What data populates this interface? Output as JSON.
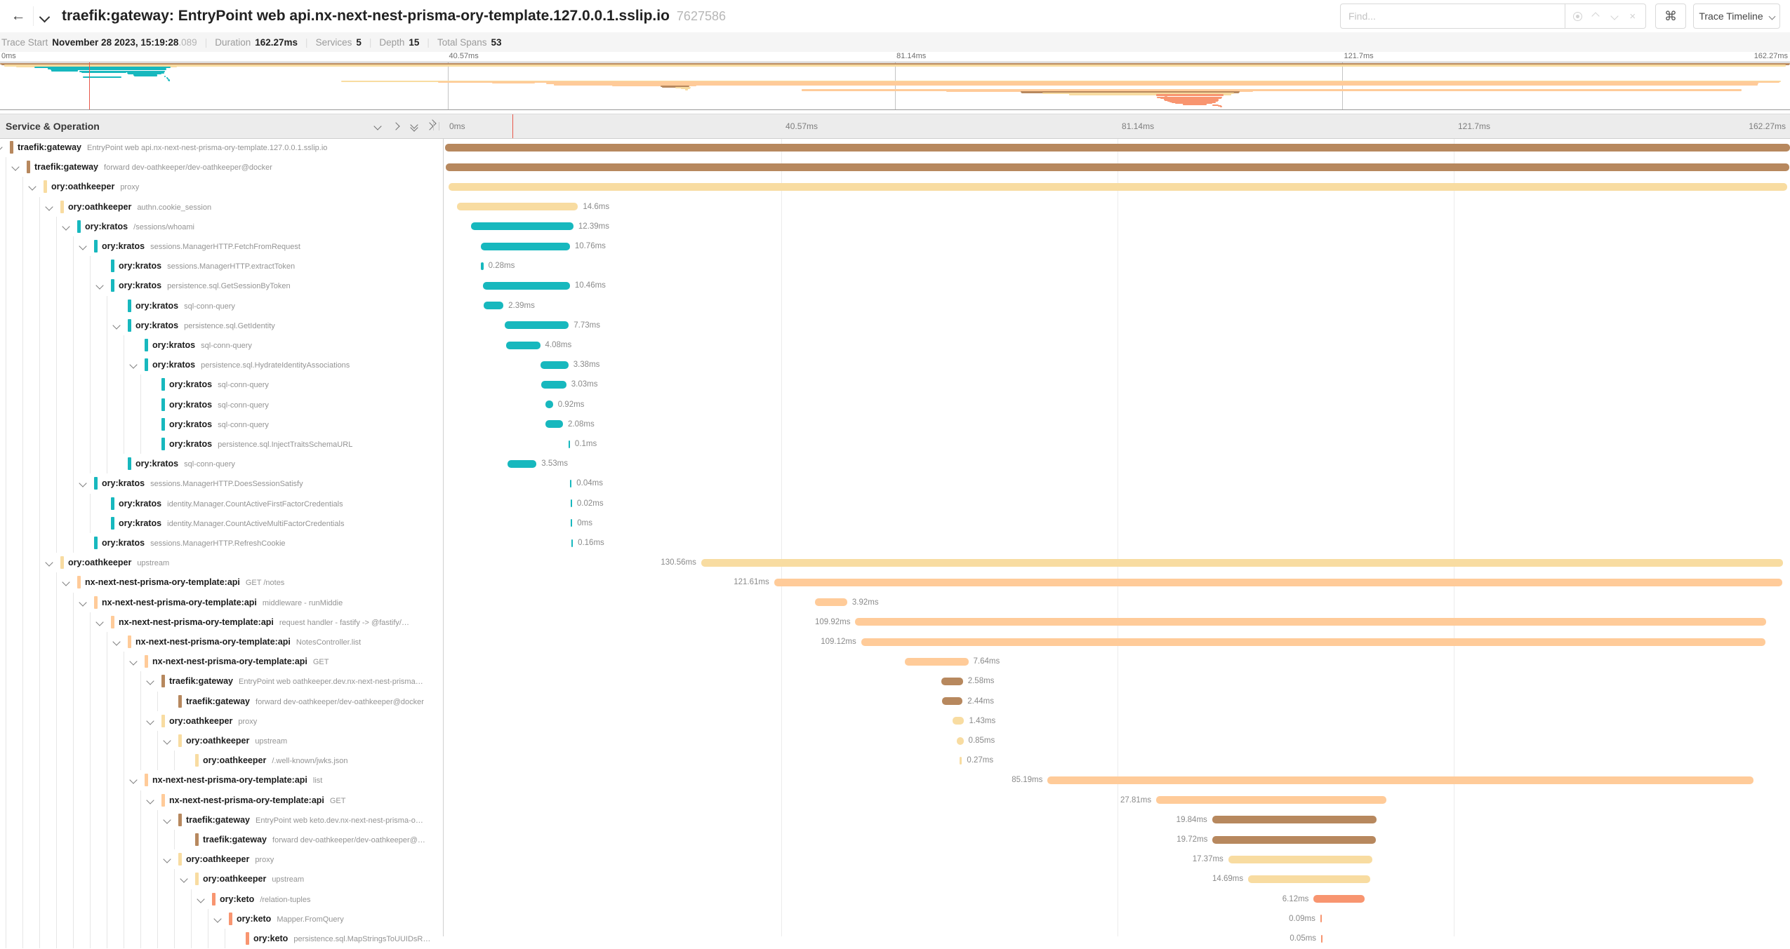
{
  "header": {
    "back": "←",
    "title": "traefik:gateway: EntryPoint web api.nx-next-nest-prisma-ory-template.127.0.0.1.sslip.io",
    "trace_id": "7627586",
    "find_placeholder": "Find...",
    "find_icons": [
      "locate-icon",
      "chevron-up-icon",
      "chevron-down-icon",
      "close-icon"
    ],
    "shortcut_key": "⌘",
    "view_selector": "Trace Timeline"
  },
  "stats": [
    {
      "label": "Trace Start",
      "value": "November 28 2023, 15:19:28",
      "suffix": ".089"
    },
    {
      "label": "Duration",
      "value": "162.27ms"
    },
    {
      "label": "Services",
      "value": "5"
    },
    {
      "label": "Depth",
      "value": "15"
    },
    {
      "label": "Total Spans",
      "value": "53"
    }
  ],
  "timeline": {
    "col_header": "Service & Operation",
    "controls": [
      "chevron-down",
      "chevron-right",
      "double-chevron-down",
      "double-chevron-right"
    ],
    "ticks": [
      {
        "label": "0ms",
        "ms": 0
      },
      {
        "label": "40.57ms",
        "ms": 40.57
      },
      {
        "label": "81.14ms",
        "ms": 81.14
      },
      {
        "label": "121.7ms",
        "ms": 121.7
      },
      {
        "label": "162.27ms",
        "ms": 162.27
      }
    ],
    "total_ms": 162.27,
    "cursor_ms": 8.1,
    "cursor_color": "#e8584b"
  },
  "service_colors": {
    "traefik:gateway": "#B7885E",
    "ory:oathkeeper": "#F8DCA1",
    "ory:kratos": "#17B8BE",
    "nx-next-nest-prisma-ory-template:api": "#FFCB99",
    "ory:keto": "#F89570"
  },
  "spans": [
    {
      "service": "traefik:gateway",
      "op": "EntryPoint web api.nx-next-nest-prisma-ory-template.127.0.0.1.sslip.io",
      "depth": 0,
      "parent": true,
      "start": 0,
      "dur": 162.27,
      "label": ""
    },
    {
      "service": "traefik:gateway",
      "op": "forward dev-oathkeeper/dev-oathkeeper@docker",
      "depth": 1,
      "parent": true,
      "start": 0.1,
      "dur": 162.1,
      "label": ""
    },
    {
      "service": "ory:oathkeeper",
      "op": "proxy",
      "depth": 2,
      "parent": true,
      "start": 0.4,
      "dur": 161.5,
      "label": ""
    },
    {
      "service": "ory:oathkeeper",
      "op": "authn.cookie_session",
      "depth": 3,
      "parent": true,
      "start": 1.44,
      "dur": 14.6,
      "label": "14.6ms"
    },
    {
      "service": "ory:kratos",
      "op": "/sessions/whoami",
      "depth": 4,
      "parent": true,
      "start": 3.1,
      "dur": 12.39,
      "label": "12.39ms"
    },
    {
      "service": "ory:kratos",
      "op": "sessions.ManagerHTTP.FetchFromRequest",
      "depth": 5,
      "parent": true,
      "start": 4.3,
      "dur": 10.76,
      "label": "10.76ms"
    },
    {
      "service": "ory:kratos",
      "op": "sessions.ManagerHTTP.extractToken",
      "depth": 6,
      "parent": false,
      "start": 4.35,
      "dur": 0.28,
      "label": "0.28ms"
    },
    {
      "service": "ory:kratos",
      "op": "persistence.sql.GetSessionByToken",
      "depth": 6,
      "parent": true,
      "start": 4.6,
      "dur": 10.46,
      "label": "10.46ms"
    },
    {
      "service": "ory:kratos",
      "op": "sql-conn-query",
      "depth": 7,
      "parent": false,
      "start": 4.65,
      "dur": 2.39,
      "label": "2.39ms"
    },
    {
      "service": "ory:kratos",
      "op": "persistence.sql.GetIdentity",
      "depth": 7,
      "parent": true,
      "start": 7.2,
      "dur": 7.73,
      "label": "7.73ms"
    },
    {
      "service": "ory:kratos",
      "op": "sql-conn-query",
      "depth": 8,
      "parent": false,
      "start": 7.4,
      "dur": 4.08,
      "label": "4.08ms"
    },
    {
      "service": "ory:kratos",
      "op": "persistence.sql.HydrateIdentityAssociations",
      "depth": 8,
      "parent": true,
      "start": 11.5,
      "dur": 3.38,
      "label": "3.38ms"
    },
    {
      "service": "ory:kratos",
      "op": "sql-conn-query",
      "depth": 9,
      "parent": false,
      "start": 11.6,
      "dur": 3.03,
      "label": "3.03ms"
    },
    {
      "service": "ory:kratos",
      "op": "sql-conn-query",
      "depth": 9,
      "parent": false,
      "start": 12.1,
      "dur": 0.92,
      "label": "0.92ms"
    },
    {
      "service": "ory:kratos",
      "op": "sql-conn-query",
      "depth": 9,
      "parent": false,
      "start": 12.15,
      "dur": 2.08,
      "label": "2.08ms"
    },
    {
      "service": "ory:kratos",
      "op": "persistence.sql.InjectTraitsSchemaURL",
      "depth": 9,
      "parent": false,
      "start": 14.9,
      "dur": 0.1,
      "label": "0.1ms"
    },
    {
      "service": "ory:kratos",
      "op": "sql-conn-query",
      "depth": 7,
      "parent": false,
      "start": 7.5,
      "dur": 3.53,
      "label": "3.53ms"
    },
    {
      "service": "ory:kratos",
      "op": "sessions.ManagerHTTP.DoesSessionSatisfy",
      "depth": 5,
      "parent": true,
      "start": 15.1,
      "dur": 0.04,
      "label": "0.04ms"
    },
    {
      "service": "ory:kratos",
      "op": "identity.Manager.CountActiveFirstFactorCredentials",
      "depth": 6,
      "parent": false,
      "start": 15.15,
      "dur": 0.02,
      "label": "0.02ms"
    },
    {
      "service": "ory:kratos",
      "op": "identity.Manager.CountActiveMultiFactorCredentials",
      "depth": 6,
      "parent": false,
      "start": 15.18,
      "dur": 0,
      "label": "0ms"
    },
    {
      "service": "ory:kratos",
      "op": "sessions.ManagerHTTP.RefreshCookie",
      "depth": 5,
      "parent": false,
      "start": 15.25,
      "dur": 0.16,
      "label": "0.16ms"
    },
    {
      "service": "ory:oathkeeper",
      "op": "upstream",
      "depth": 3,
      "parent": true,
      "start": 30.9,
      "dur": 130.56,
      "label": "130.56ms"
    },
    {
      "service": "nx-next-nest-prisma-ory-template:api",
      "op": "GET /notes",
      "depth": 4,
      "parent": true,
      "start": 39.7,
      "dur": 121.61,
      "label": "121.61ms"
    },
    {
      "service": "nx-next-nest-prisma-ory-template:api",
      "op": "middleware - runMiddie",
      "depth": 5,
      "parent": true,
      "start": 44.6,
      "dur": 3.92,
      "label": "3.92ms"
    },
    {
      "service": "nx-next-nest-prisma-ory-template:api",
      "op": "request handler - fastify -> @fastify/…",
      "depth": 6,
      "parent": true,
      "start": 49.5,
      "dur": 109.92,
      "label": "109.92ms"
    },
    {
      "service": "nx-next-nest-prisma-ory-template:api",
      "op": "NotesController.list",
      "depth": 7,
      "parent": true,
      "start": 50.2,
      "dur": 109.12,
      "label": "109.12ms"
    },
    {
      "service": "nx-next-nest-prisma-ory-template:api",
      "op": "GET",
      "depth": 8,
      "parent": true,
      "start": 55.5,
      "dur": 7.64,
      "label": "7.64ms"
    },
    {
      "service": "traefik:gateway",
      "op": "EntryPoint web oathkeeper.dev.nx-next-nest-prisma…",
      "depth": 9,
      "parent": true,
      "start": 59.9,
      "dur": 2.58,
      "label": "2.58ms"
    },
    {
      "service": "traefik:gateway",
      "op": "forward dev-oathkeeper/dev-oathkeeper@docker",
      "depth": 10,
      "parent": false,
      "start": 60.0,
      "dur": 2.44,
      "label": "2.44ms"
    },
    {
      "service": "ory:oathkeeper",
      "op": "proxy",
      "depth": 9,
      "parent": true,
      "start": 61.2,
      "dur": 1.43,
      "label": "1.43ms"
    },
    {
      "service": "ory:oathkeeper",
      "op": "upstream",
      "depth": 10,
      "parent": true,
      "start": 61.7,
      "dur": 0.85,
      "label": "0.85ms"
    },
    {
      "service": "ory:oathkeeper",
      "op": "/.well-known/jwks.json",
      "depth": 11,
      "parent": false,
      "start": 62.1,
      "dur": 0.27,
      "label": "0.27ms"
    },
    {
      "service": "nx-next-nest-prisma-ory-template:api",
      "op": "list",
      "depth": 8,
      "parent": true,
      "start": 72.7,
      "dur": 85.19,
      "label": "85.19ms"
    },
    {
      "service": "nx-next-nest-prisma-ory-template:api",
      "op": "GET",
      "depth": 9,
      "parent": true,
      "start": 85.8,
      "dur": 27.81,
      "label": "27.81ms"
    },
    {
      "service": "traefik:gateway",
      "op": "EntryPoint web keto.dev.nx-next-nest-prisma-o…",
      "depth": 10,
      "parent": true,
      "start": 92.55,
      "dur": 19.84,
      "label": "19.84ms"
    },
    {
      "service": "traefik:gateway",
      "op": "forward dev-oathkeeper/dev-oathkeeper@…",
      "depth": 11,
      "parent": false,
      "start": 92.6,
      "dur": 19.72,
      "label": "19.72ms"
    },
    {
      "service": "ory:oathkeeper",
      "op": "proxy",
      "depth": 10,
      "parent": true,
      "start": 94.5,
      "dur": 17.37,
      "label": "17.37ms"
    },
    {
      "service": "ory:oathkeeper",
      "op": "upstream",
      "depth": 11,
      "parent": true,
      "start": 96.9,
      "dur": 14.69,
      "label": "14.69ms"
    },
    {
      "service": "ory:keto",
      "op": "/relation-tuples",
      "depth": 12,
      "parent": true,
      "start": 104.8,
      "dur": 6.12,
      "label": "6.12ms"
    },
    {
      "service": "ory:keto",
      "op": "Mapper.FromQuery",
      "depth": 13,
      "parent": true,
      "start": 105.6,
      "dur": 0.09,
      "label": "0.09ms"
    },
    {
      "service": "ory:keto",
      "op": "persistence.sql.MapStringsToUUIDsR…",
      "depth": 14,
      "parent": false,
      "start": 105.7,
      "dur": 0.05,
      "label": "0.05ms"
    }
  ],
  "minimap_extra_spans": [
    {
      "service": "ory:keto",
      "start": 104.9,
      "dur": 5.9
    },
    {
      "service": "ory:keto",
      "start": 105.2,
      "dur": 5.5
    },
    {
      "service": "ory:keto",
      "start": 105.5,
      "dur": 0.2
    },
    {
      "service": "ory:keto",
      "start": 105.6,
      "dur": 4.9
    },
    {
      "service": "ory:keto",
      "start": 105.8,
      "dur": 4.6
    },
    {
      "service": "ory:keto",
      "start": 106.0,
      "dur": 0.3
    },
    {
      "service": "ory:keto",
      "start": 106.2,
      "dur": 4.0
    },
    {
      "service": "ory:keto",
      "start": 106.5,
      "dur": 3.4
    },
    {
      "service": "ory:keto",
      "start": 107.2,
      "dur": 2.2
    },
    {
      "service": "ory:keto",
      "start": 109.9,
      "dur": 0.6
    },
    {
      "service": "ory:keto",
      "start": 110.4,
      "dur": 0.3
    },
    {
      "service": "ory:keto",
      "start": 110.6,
      "dur": 0.2
    }
  ]
}
